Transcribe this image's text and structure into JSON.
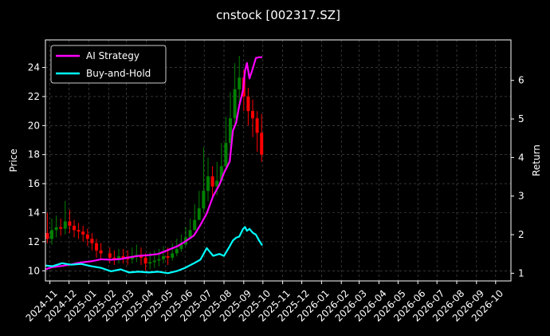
{
  "chart_data": {
    "type": "line",
    "title": "cnstock [002317.SZ]",
    "ylabel": "Price",
    "y2label": "Return",
    "xlim": [
      "2024-10-25",
      "2026-10-25"
    ],
    "ylim": [
      9.3,
      25.9
    ],
    "y2lim": [
      0.8,
      7.05
    ],
    "yticks": [
      10,
      12,
      14,
      16,
      18,
      20,
      22,
      24
    ],
    "y2ticks": [
      1,
      2,
      3,
      4,
      5,
      6
    ],
    "xticks": [
      "2024-11",
      "2024-12",
      "2025-01",
      "2025-02",
      "2025-03",
      "2025-04",
      "2025-05",
      "2025-06",
      "2025-07",
      "2025-08",
      "2025-09",
      "2025-10",
      "2025-11",
      "2025-12",
      "2026-01",
      "2026-02",
      "2026-03",
      "2026-04",
      "2026-05",
      "2026-06",
      "2026-07",
      "2026-08",
      "2026-09",
      "2026-10"
    ],
    "grid": true,
    "legend_position": "top-left",
    "background": "#000000",
    "candles": {
      "up_color": "#008000",
      "down_color": "#ff0000",
      "dates": [
        "2024-10-28",
        "2024-11-04",
        "2024-11-11",
        "2024-11-18",
        "2024-11-25",
        "2024-12-02",
        "2024-12-09",
        "2024-12-16",
        "2024-12-23",
        "2024-12-30",
        "2025-01-06",
        "2025-01-13",
        "2025-01-20",
        "2025-02-03",
        "2025-02-10",
        "2025-02-17",
        "2025-02-24",
        "2025-03-03",
        "2025-03-10",
        "2025-03-17",
        "2025-03-24",
        "2025-03-31",
        "2025-04-07",
        "2025-04-14",
        "2025-04-21",
        "2025-04-28",
        "2025-05-05",
        "2025-05-12",
        "2025-05-19",
        "2025-05-26",
        "2025-06-02",
        "2025-06-09",
        "2025-06-16",
        "2025-06-23",
        "2025-06-30",
        "2025-07-07",
        "2025-07-14",
        "2025-07-21",
        "2025-07-28",
        "2025-08-04",
        "2025-08-11",
        "2025-08-18",
        "2025-08-25",
        "2025-09-01",
        "2025-09-08",
        "2025-09-15",
        "2025-09-22",
        "2025-09-29"
      ],
      "open": [
        12.6,
        12.2,
        12.8,
        13.0,
        12.9,
        13.4,
        13.1,
        12.8,
        12.7,
        12.5,
        12.2,
        11.9,
        11.4,
        11.2,
        10.9,
        10.8,
        11.0,
        10.9,
        10.8,
        11.0,
        11.1,
        10.9,
        10.5,
        10.6,
        10.7,
        10.8,
        11.0,
        10.9,
        11.2,
        11.5,
        11.8,
        12.3,
        12.8,
        13.5,
        14.3,
        15.5,
        16.5,
        15.8,
        16.2,
        17.2,
        18.8,
        20.5,
        22.5,
        23.3,
        22.0,
        21.0,
        20.5,
        19.5
      ],
      "close": [
        12.2,
        12.8,
        13.0,
        12.9,
        13.4,
        13.1,
        12.8,
        12.7,
        12.5,
        12.2,
        11.9,
        11.4,
        11.2,
        10.9,
        10.8,
        11.0,
        10.9,
        10.8,
        11.0,
        11.1,
        10.9,
        10.5,
        10.6,
        10.7,
        10.8,
        11.0,
        10.9,
        11.2,
        11.5,
        11.8,
        12.3,
        12.8,
        13.5,
        14.3,
        15.5,
        16.5,
        15.8,
        16.2,
        17.2,
        18.8,
        20.5,
        22.5,
        23.3,
        22.0,
        21.0,
        20.5,
        19.5,
        18.0
      ],
      "high": [
        14.0,
        13.6,
        13.8,
        13.6,
        14.8,
        14.2,
        13.5,
        13.3,
        13.1,
        12.9,
        12.6,
        12.2,
        11.9,
        11.6,
        11.4,
        11.5,
        11.5,
        11.4,
        11.6,
        11.8,
        11.6,
        11.2,
        11.3,
        11.4,
        11.5,
        11.7,
        11.6,
        11.9,
        12.2,
        12.5,
        13.0,
        13.6,
        14.6,
        15.5,
        18.5,
        17.8,
        17.2,
        17.5,
        18.8,
        20.6,
        22.3,
        24.3,
        24.8,
        23.8,
        22.6,
        21.8,
        21.0,
        20.8
      ],
      "low": [
        11.9,
        11.8,
        12.3,
        12.4,
        12.5,
        12.6,
        12.3,
        12.2,
        12.0,
        11.7,
        11.4,
        10.9,
        10.8,
        10.5,
        10.4,
        10.5,
        10.5,
        10.4,
        10.5,
        10.6,
        10.4,
        10.0,
        10.1,
        10.2,
        10.3,
        10.5,
        10.4,
        10.7,
        11.0,
        11.3,
        11.7,
        12.2,
        12.8,
        13.6,
        14.0,
        14.8,
        15.0,
        15.2,
        16.2,
        17.0,
        18.2,
        19.8,
        21.5,
        21.0,
        20.0,
        19.2,
        18.2,
        17.5
      ]
    },
    "series": [
      {
        "name": "AI Strategy",
        "axis": "right",
        "color": "#ff00ff",
        "x": [
          "2024-10-25",
          "2024-11-05",
          "2024-11-20",
          "2024-12-05",
          "2024-12-20",
          "2025-01-05",
          "2025-01-20",
          "2025-02-05",
          "2025-02-20",
          "2025-03-05",
          "2025-03-20",
          "2025-04-05",
          "2025-04-20",
          "2025-05-05",
          "2025-05-20",
          "2025-06-01",
          "2025-06-15",
          "2025-06-25",
          "2025-07-05",
          "2025-07-15",
          "2025-07-25",
          "2025-08-01",
          "2025-08-10",
          "2025-08-15",
          "2025-08-20",
          "2025-08-25",
          "2025-08-31",
          "2025-09-03",
          "2025-09-06",
          "2025-09-10",
          "2025-09-15",
          "2025-09-20",
          "2025-09-25",
          "2025-09-30"
        ],
        "values": [
          1.1,
          1.16,
          1.19,
          1.23,
          1.28,
          1.31,
          1.36,
          1.35,
          1.37,
          1.41,
          1.45,
          1.47,
          1.5,
          1.6,
          1.7,
          1.82,
          1.98,
          2.25,
          2.55,
          3.0,
          3.3,
          3.6,
          3.9,
          4.7,
          4.9,
          5.35,
          5.75,
          6.25,
          6.45,
          6.05,
          6.3,
          6.58,
          6.6,
          6.6
        ]
      },
      {
        "name": "Buy-and-Hold",
        "axis": "right",
        "color": "#00ffff",
        "x": [
          "2024-10-25",
          "2024-11-05",
          "2024-11-20",
          "2024-12-05",
          "2024-12-20",
          "2025-01-05",
          "2025-01-20",
          "2025-02-05",
          "2025-02-20",
          "2025-03-05",
          "2025-03-20",
          "2025-04-05",
          "2025-04-20",
          "2025-05-05",
          "2025-05-20",
          "2025-06-01",
          "2025-06-15",
          "2025-06-25",
          "2025-07-05",
          "2025-07-15",
          "2025-07-25",
          "2025-08-01",
          "2025-08-10",
          "2025-08-15",
          "2025-08-20",
          "2025-08-25",
          "2025-08-31",
          "2025-09-03",
          "2025-09-06",
          "2025-09-10",
          "2025-09-15",
          "2025-09-20",
          "2025-09-25",
          "2025-09-30"
        ],
        "values": [
          1.2,
          1.18,
          1.26,
          1.22,
          1.24,
          1.18,
          1.14,
          1.05,
          1.1,
          1.02,
          1.04,
          1.02,
          1.04,
          1.0,
          1.06,
          1.14,
          1.26,
          1.35,
          1.65,
          1.45,
          1.5,
          1.45,
          1.7,
          1.85,
          1.92,
          1.95,
          2.15,
          2.2,
          2.1,
          2.15,
          2.05,
          2.0,
          1.85,
          1.72
        ]
      }
    ]
  }
}
